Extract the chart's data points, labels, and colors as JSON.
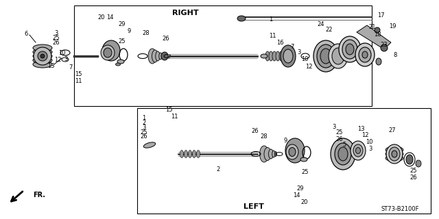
{
  "bg_color": "#ffffff",
  "line_color": "#000000",
  "text_color": "#000000",
  "gray_dark": "#333333",
  "gray_mid": "#666666",
  "gray_light": "#aaaaaa",
  "gray_fill": "#888888",
  "label_right": "RIGHT",
  "label_left": "LEFT",
  "label_fr": "FR.",
  "catalog_num": "ST73-B2100F",
  "fig_width": 6.4,
  "fig_height": 3.2,
  "dpi": 100
}
